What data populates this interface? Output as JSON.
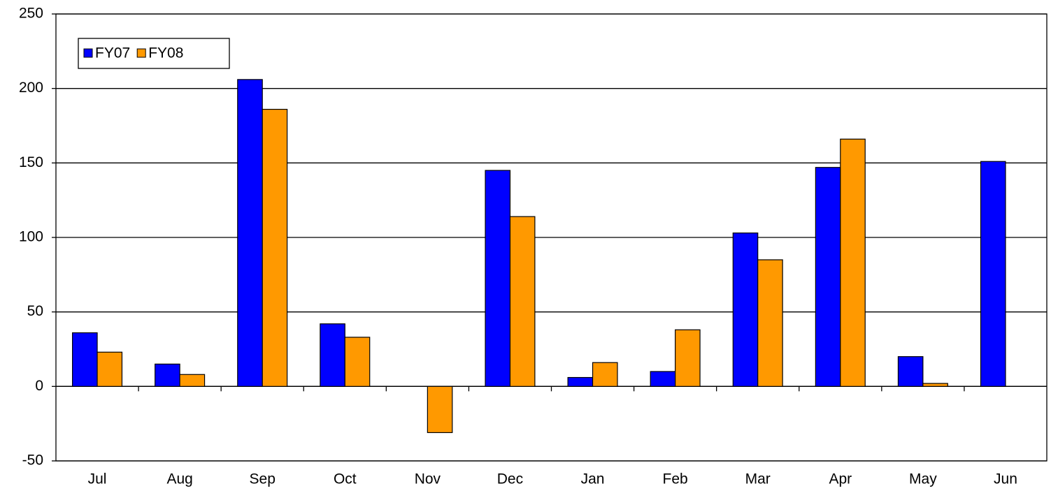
{
  "chart_data": {
    "type": "bar",
    "categories": [
      "Jul",
      "Aug",
      "Sep",
      "Oct",
      "Nov",
      "Dec",
      "Jan",
      "Feb",
      "Mar",
      "Apr",
      "May",
      "Jun"
    ],
    "series": [
      {
        "name": "FY07",
        "color": "#0000ff",
        "values": [
          36,
          15,
          206,
          42,
          null,
          145,
          6,
          10,
          103,
          147,
          20,
          151
        ]
      },
      {
        "name": "FY08",
        "color": "#ff9900",
        "values": [
          23,
          8,
          186,
          33,
          -31,
          114,
          16,
          38,
          85,
          166,
          2,
          null
        ]
      }
    ],
    "ylim": [
      -50,
      250
    ],
    "yticks": [
      -50,
      0,
      50,
      100,
      150,
      200,
      250
    ],
    "grid": true,
    "legend": "top-left"
  }
}
